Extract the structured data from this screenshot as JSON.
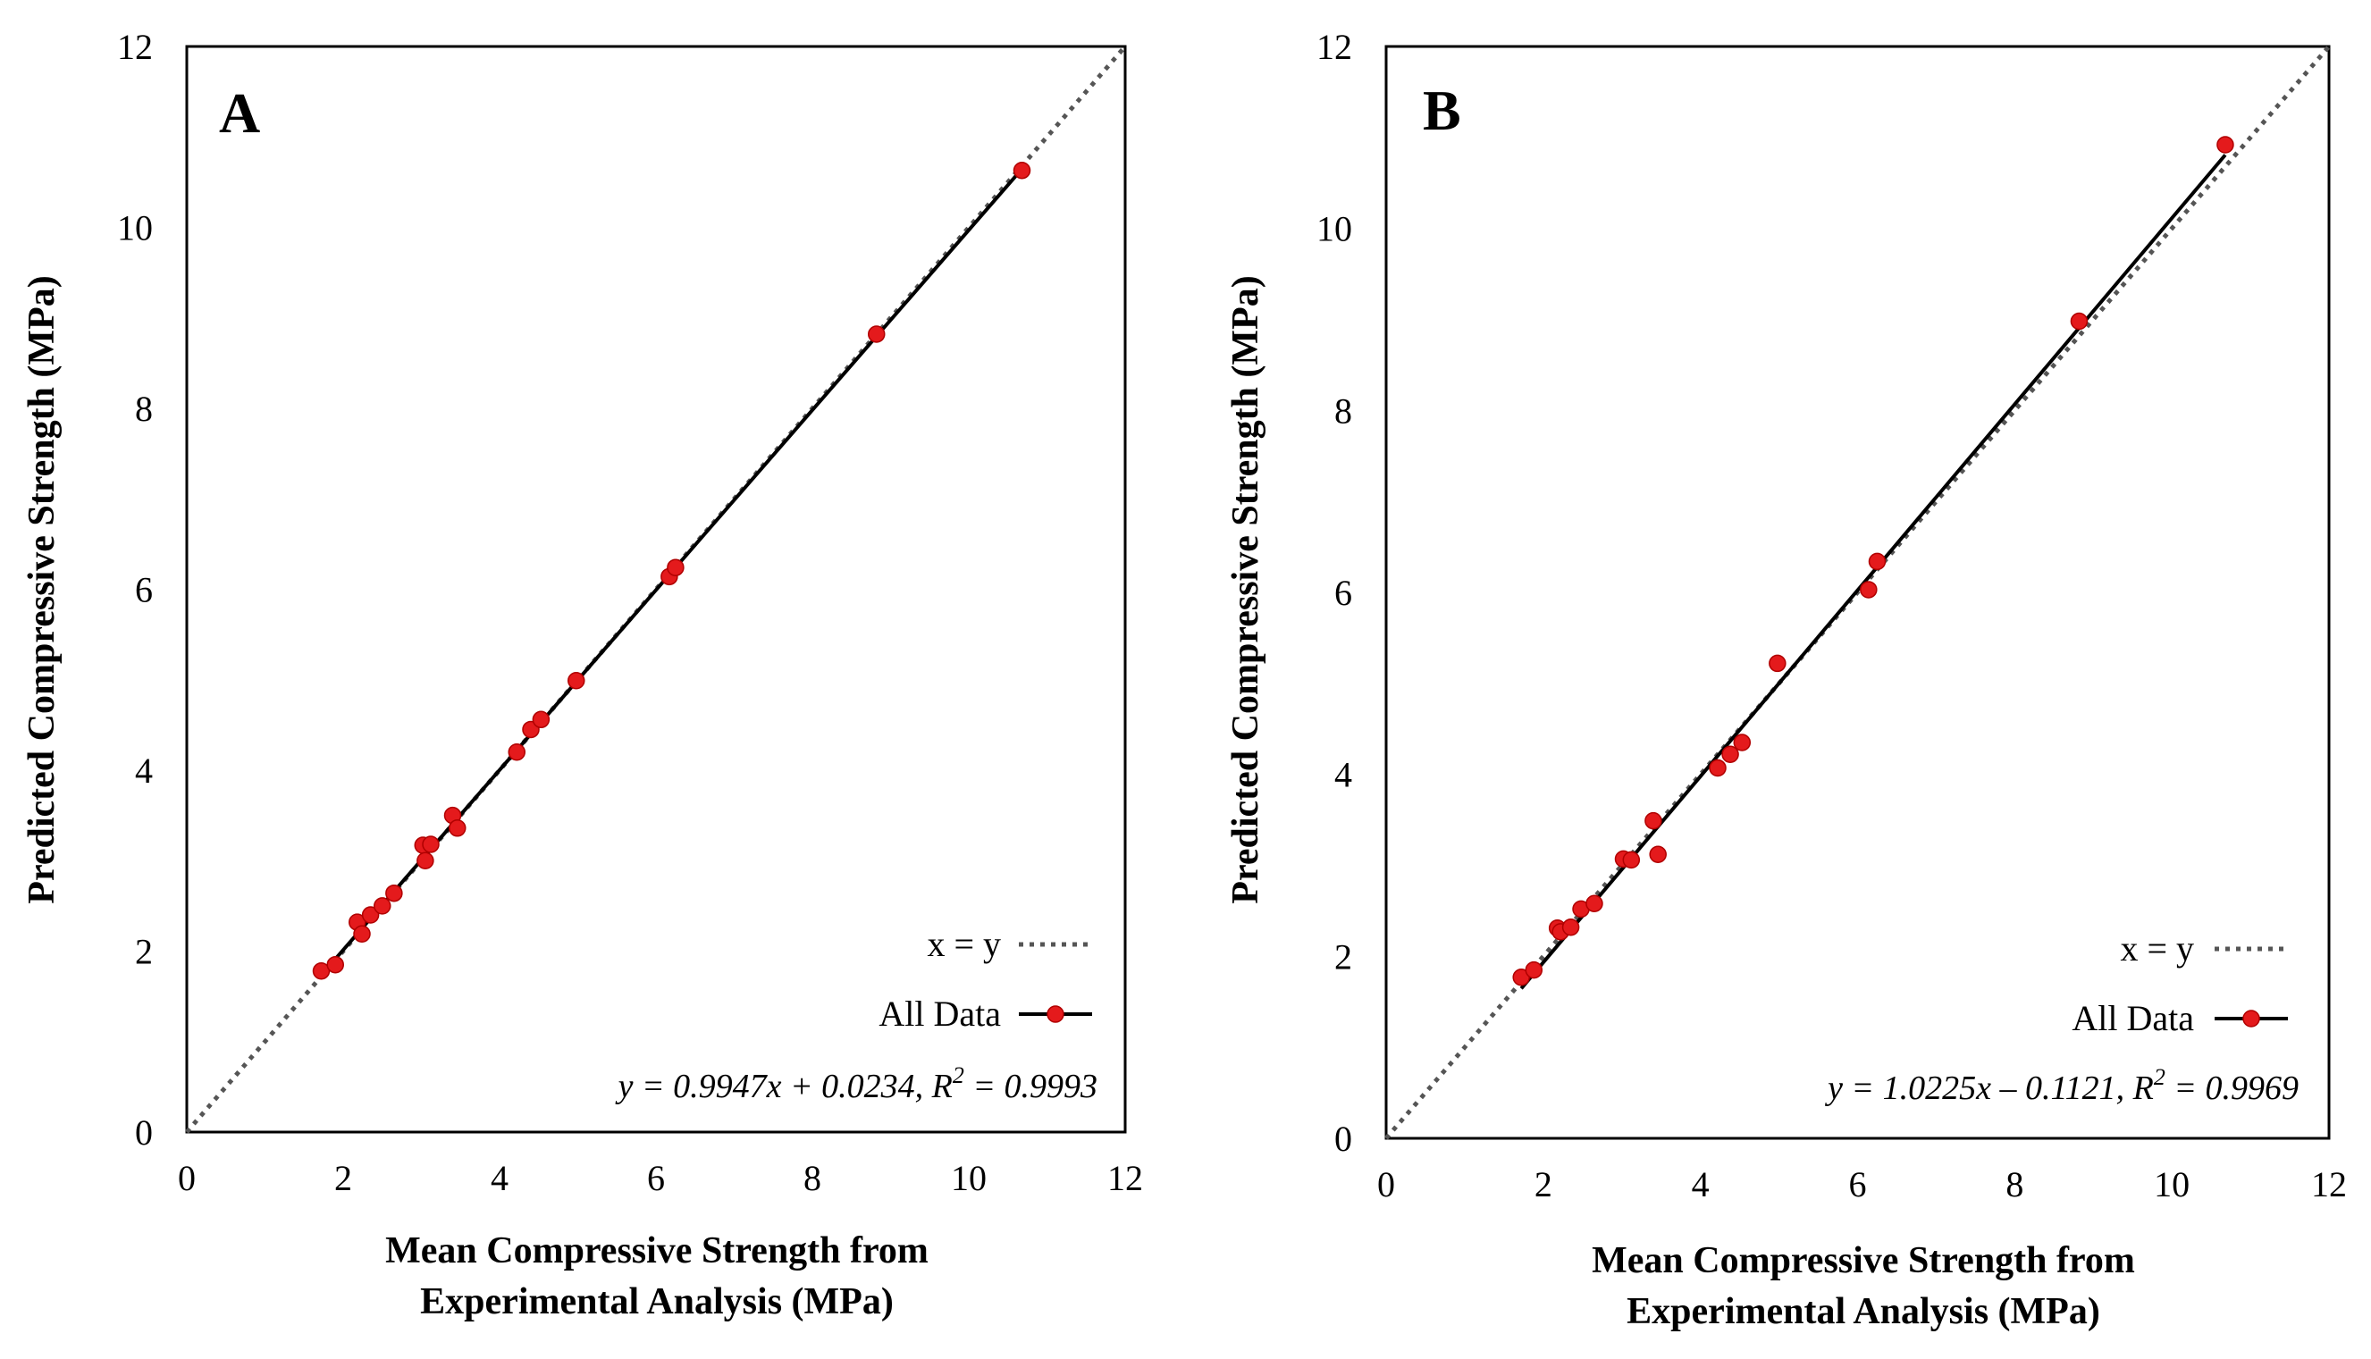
{
  "chart_data": [
    {
      "type": "scatter",
      "panel_label": "A",
      "xlabel_line1": "Mean Compressive Strength from",
      "xlabel_line2": "Experimental Analysis (MPa)",
      "ylabel": "Predicted Compressive Strength (MPa)",
      "xlim": [
        0,
        12
      ],
      "ylim": [
        0,
        12
      ],
      "xticks": [
        "0",
        "2",
        "4",
        "6",
        "8",
        "10",
        "12"
      ],
      "yticks": [
        "0",
        "2",
        "4",
        "6",
        "8",
        "10",
        "12"
      ],
      "legend": {
        "identity": "x = y",
        "data": "All Data",
        "position": "bottom-right"
      },
      "equation_text": "y = 0.9947x + 0.0234, R",
      "r2_sup": "2",
      "r2_value": " = 0.9993",
      "fit": {
        "slope": 0.9947,
        "intercept": 0.0234
      },
      "points": [
        {
          "x": 1.72,
          "y": 1.78
        },
        {
          "x": 1.9,
          "y": 1.85
        },
        {
          "x": 2.18,
          "y": 2.32
        },
        {
          "x": 2.24,
          "y": 2.19
        },
        {
          "x": 2.35,
          "y": 2.4
        },
        {
          "x": 2.5,
          "y": 2.5
        },
        {
          "x": 2.65,
          "y": 2.64
        },
        {
          "x": 3.02,
          "y": 3.17
        },
        {
          "x": 3.05,
          "y": 3.0
        },
        {
          "x": 3.12,
          "y": 3.18
        },
        {
          "x": 3.4,
          "y": 3.5
        },
        {
          "x": 3.46,
          "y": 3.36
        },
        {
          "x": 4.22,
          "y": 4.2
        },
        {
          "x": 4.4,
          "y": 4.45
        },
        {
          "x": 4.53,
          "y": 4.56
        },
        {
          "x": 4.98,
          "y": 4.99
        },
        {
          "x": 6.17,
          "y": 6.14
        },
        {
          "x": 6.25,
          "y": 6.24
        },
        {
          "x": 8.82,
          "y": 8.82
        },
        {
          "x": 10.68,
          "y": 10.63
        }
      ]
    },
    {
      "type": "scatter",
      "panel_label": "B",
      "xlabel_line1": "Mean Compressive Strength from",
      "xlabel_line2": "Experimental Analysis (MPa)",
      "ylabel": "Predicted Compressive Strength (MPa)",
      "xlim": [
        0,
        12
      ],
      "ylim": [
        0,
        12
      ],
      "xticks": [
        "0",
        "2",
        "4",
        "6",
        "8",
        "10",
        "12"
      ],
      "yticks": [
        "0",
        "2",
        "4",
        "6",
        "8",
        "10",
        "12"
      ],
      "legend": {
        "identity": "x = y",
        "data": "All Data",
        "position": "bottom-right"
      },
      "equation_text": "y = 1.0225x – 0.1121, R",
      "r2_sup": "2",
      "r2_value": " = 0.9969",
      "fit": {
        "slope": 1.0225,
        "intercept": -0.1121
      },
      "points": [
        {
          "x": 1.72,
          "y": 1.77
        },
        {
          "x": 1.88,
          "y": 1.85
        },
        {
          "x": 2.18,
          "y": 2.31
        },
        {
          "x": 2.22,
          "y": 2.27
        },
        {
          "x": 2.35,
          "y": 2.32
        },
        {
          "x": 2.48,
          "y": 2.52
        },
        {
          "x": 2.65,
          "y": 2.58
        },
        {
          "x": 3.02,
          "y": 3.07
        },
        {
          "x": 3.12,
          "y": 3.06
        },
        {
          "x": 3.4,
          "y": 3.49
        },
        {
          "x": 3.46,
          "y": 3.12
        },
        {
          "x": 4.22,
          "y": 4.07
        },
        {
          "x": 4.38,
          "y": 4.22
        },
        {
          "x": 4.53,
          "y": 4.35
        },
        {
          "x": 4.98,
          "y": 5.22
        },
        {
          "x": 6.14,
          "y": 6.03
        },
        {
          "x": 6.25,
          "y": 6.34
        },
        {
          "x": 8.82,
          "y": 8.98
        },
        {
          "x": 10.68,
          "y": 10.92
        }
      ]
    }
  ]
}
